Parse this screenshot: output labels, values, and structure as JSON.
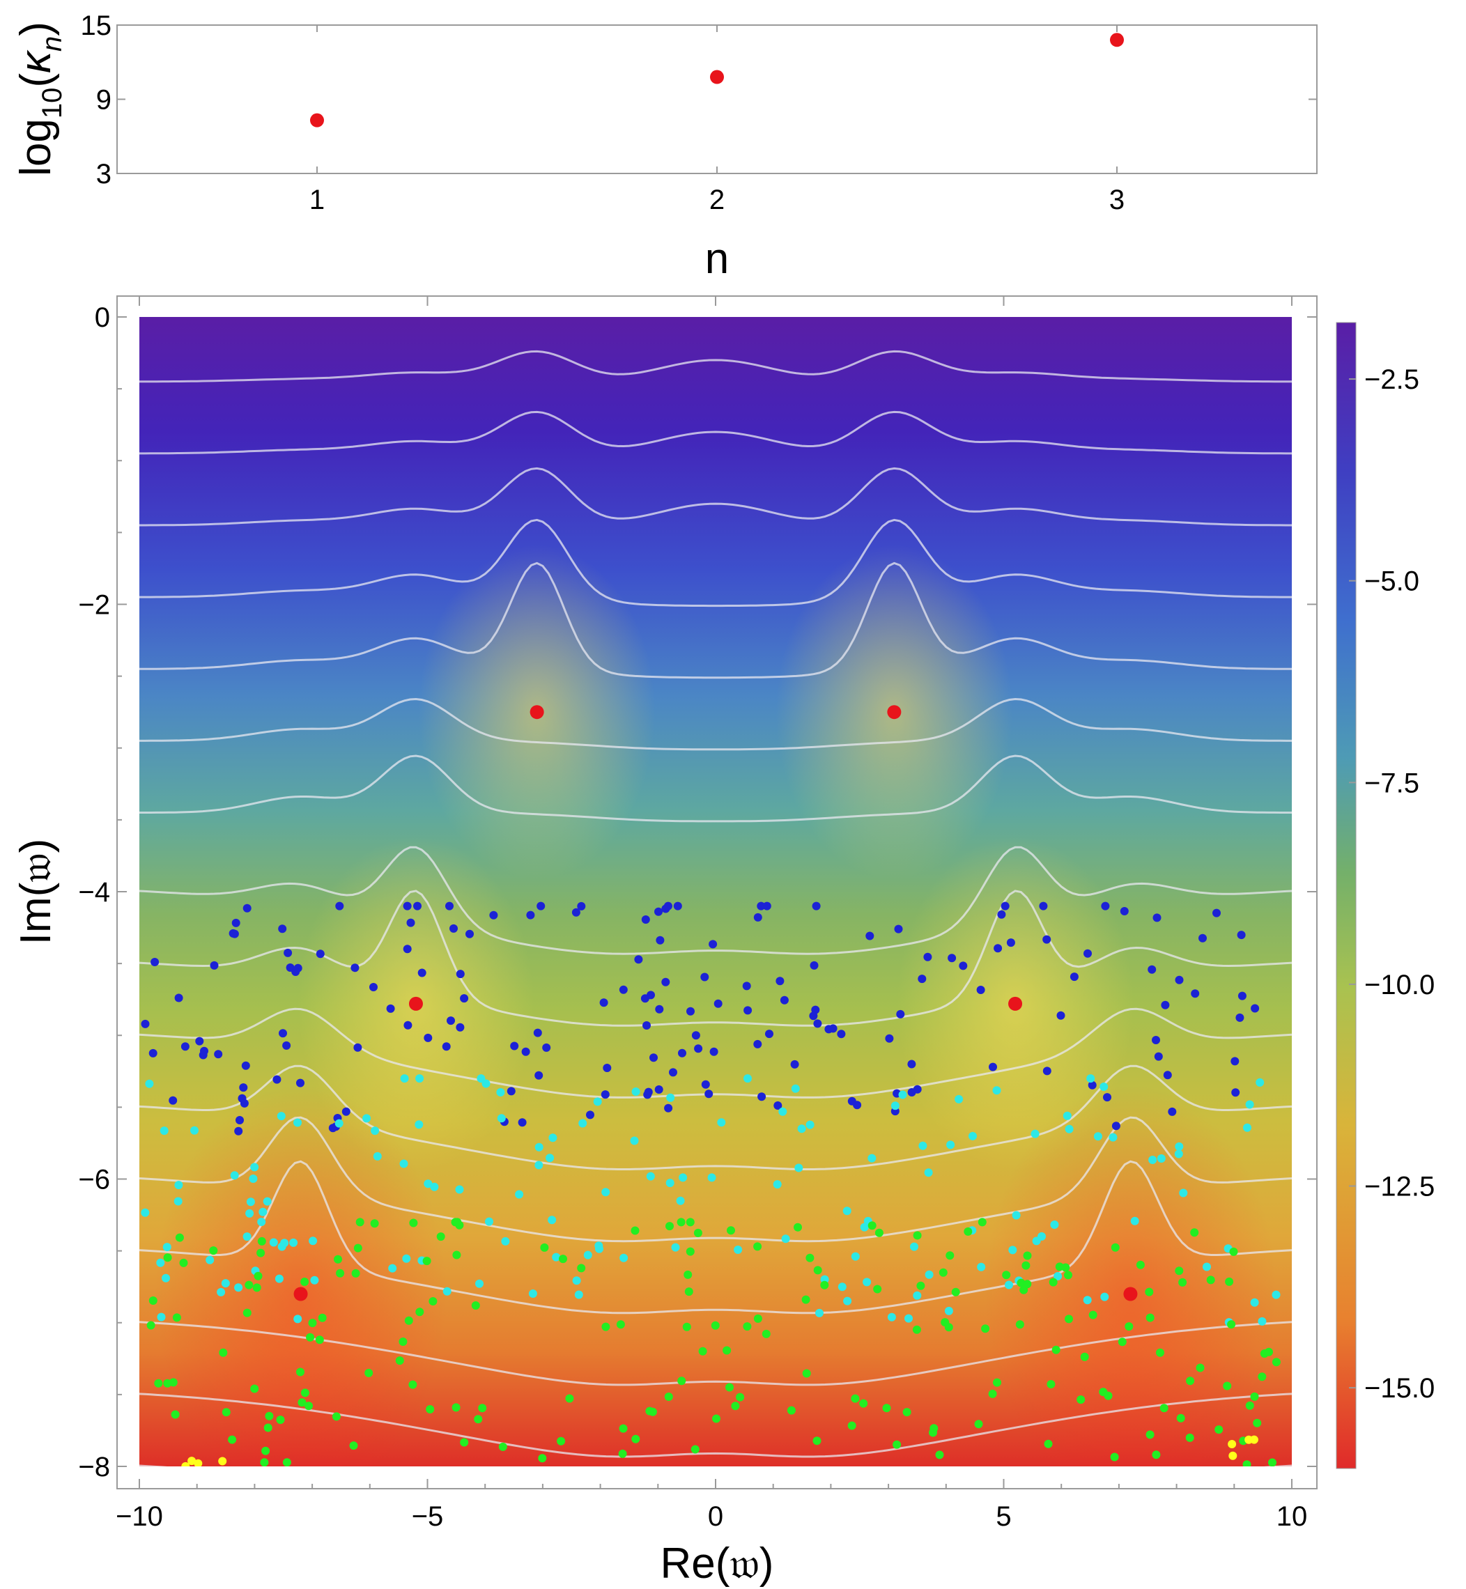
{
  "chart_data": [
    {
      "type": "scatter",
      "panel": "top",
      "title": "",
      "xlabel": "n",
      "ylabel_base": "log",
      "ylabel_sub": "10",
      "ylabel_arg": "κ",
      "ylabel_arg_sub": "n",
      "xlim": [
        0.5,
        3.5
      ],
      "ylim": [
        3,
        15
      ],
      "xticks": [
        1,
        2,
        3
      ],
      "yticks": [
        3,
        9,
        15
      ],
      "x": [
        1,
        2,
        3
      ],
      "y": [
        7.3,
        10.8,
        13.8
      ],
      "marker_color": "#e8141b"
    },
    {
      "type": "heatmap",
      "panel": "bottom",
      "xlabel_pre": "Re(",
      "xlabel_sym": "𝔴",
      "xlabel_post": ")",
      "ylabel_pre": "Im(",
      "ylabel_sym": "𝔴",
      "ylabel_post": ")",
      "xlim": [
        -10,
        10
      ],
      "ylim": [
        -8,
        0
      ],
      "xticks": [
        -10,
        -5,
        0,
        5,
        10
      ],
      "yticks": [
        0,
        -2,
        -4,
        -6,
        -8
      ],
      "colorbar": {
        "range": [
          -16,
          -1.8
        ],
        "ticks": [
          -2.5,
          -5.0,
          -7.5,
          -10.0,
          -12.5,
          -15.0
        ],
        "tick_labels": [
          "−2.5",
          "−5.0",
          "−7.5",
          "−10.0",
          "−12.5",
          "−15.0"
        ],
        "colors": [
          "#e02a2a",
          "#e8812f",
          "#d9b43a",
          "#a9c250",
          "#74b06a",
          "#4e9bb5",
          "#3f6fce",
          "#3f3fc2",
          "#5a1ea6"
        ]
      },
      "contour_color": "#e8e8f0",
      "peaks": [
        {
          "x": -3.1,
          "y": -2.75
        },
        {
          "x": 3.1,
          "y": -2.75
        },
        {
          "x": -5.2,
          "y": -4.78
        },
        {
          "x": 5.2,
          "y": -4.78
        },
        {
          "x": -7.2,
          "y": -6.8
        },
        {
          "x": 7.2,
          "y": -6.8
        }
      ],
      "quasinormal_modes": {
        "color": "#e8141b",
        "x": [
          -3.1,
          3.1,
          -5.2,
          5.2,
          -7.2,
          7.2
        ],
        "y": [
          -2.75,
          -2.75,
          -4.78,
          -4.78,
          -6.8,
          -6.8
        ]
      },
      "pseudospectrum_series": [
        {
          "name": "blue",
          "color": "#1c22d6",
          "y_range": [
            -5.7,
            -4.1
          ]
        },
        {
          "name": "cyan",
          "color": "#2de8e6",
          "y_range": [
            -7.0,
            -5.3
          ]
        },
        {
          "name": "green",
          "color": "#22ee22",
          "y_range": [
            -8.0,
            -6.3
          ]
        },
        {
          "name": "yellow",
          "color": "#ffff1a",
          "y_range": [
            -8.0,
            -7.8
          ]
        }
      ]
    }
  ]
}
